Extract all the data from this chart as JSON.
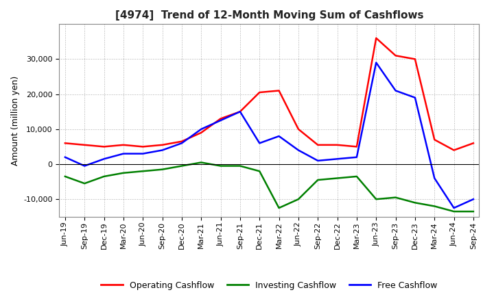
{
  "title": "[4974]  Trend of 12-Month Moving Sum of Cashflows",
  "ylabel": "Amount (million yen)",
  "ylim": [
    -15000,
    40000
  ],
  "yticks": [
    -10000,
    0,
    10000,
    20000,
    30000
  ],
  "legend_labels": [
    "Operating Cashflow",
    "Investing Cashflow",
    "Free Cashflow"
  ],
  "line_colors": [
    "red",
    "green",
    "blue"
  ],
  "x_labels": [
    "Jun-19",
    "Sep-19",
    "Dec-19",
    "Mar-20",
    "Jun-20",
    "Sep-20",
    "Dec-20",
    "Mar-21",
    "Jun-21",
    "Sep-21",
    "Dec-21",
    "Mar-22",
    "Jun-22",
    "Sep-22",
    "Dec-22",
    "Mar-23",
    "Jun-23",
    "Sep-23",
    "Dec-23",
    "Mar-24",
    "Jun-24",
    "Sep-24"
  ],
  "operating": [
    6000,
    5500,
    5000,
    5500,
    5000,
    5500,
    6500,
    9000,
    13000,
    15000,
    20500,
    21000,
    10000,
    5500,
    5500,
    5000,
    36000,
    31000,
    30000,
    7000,
    4000,
    6000
  ],
  "investing": [
    -3500,
    -5500,
    -3500,
    -2500,
    -2000,
    -1500,
    -500,
    500,
    -500,
    -500,
    -2000,
    -12500,
    -10000,
    -4500,
    -4000,
    -3500,
    -10000,
    -9500,
    -11000,
    -12000,
    -13500,
    -13500
  ],
  "free": [
    2000,
    -500,
    1500,
    3000,
    3000,
    4000,
    6000,
    10000,
    12500,
    15000,
    6000,
    8000,
    4000,
    1000,
    1500,
    2000,
    29000,
    21000,
    19000,
    -4000,
    -12500,
    -10000
  ],
  "background_color": "#ffffff",
  "grid_color": "#aaaaaa",
  "title_fontsize": 11,
  "tick_fontsize": 8,
  "label_fontsize": 9
}
